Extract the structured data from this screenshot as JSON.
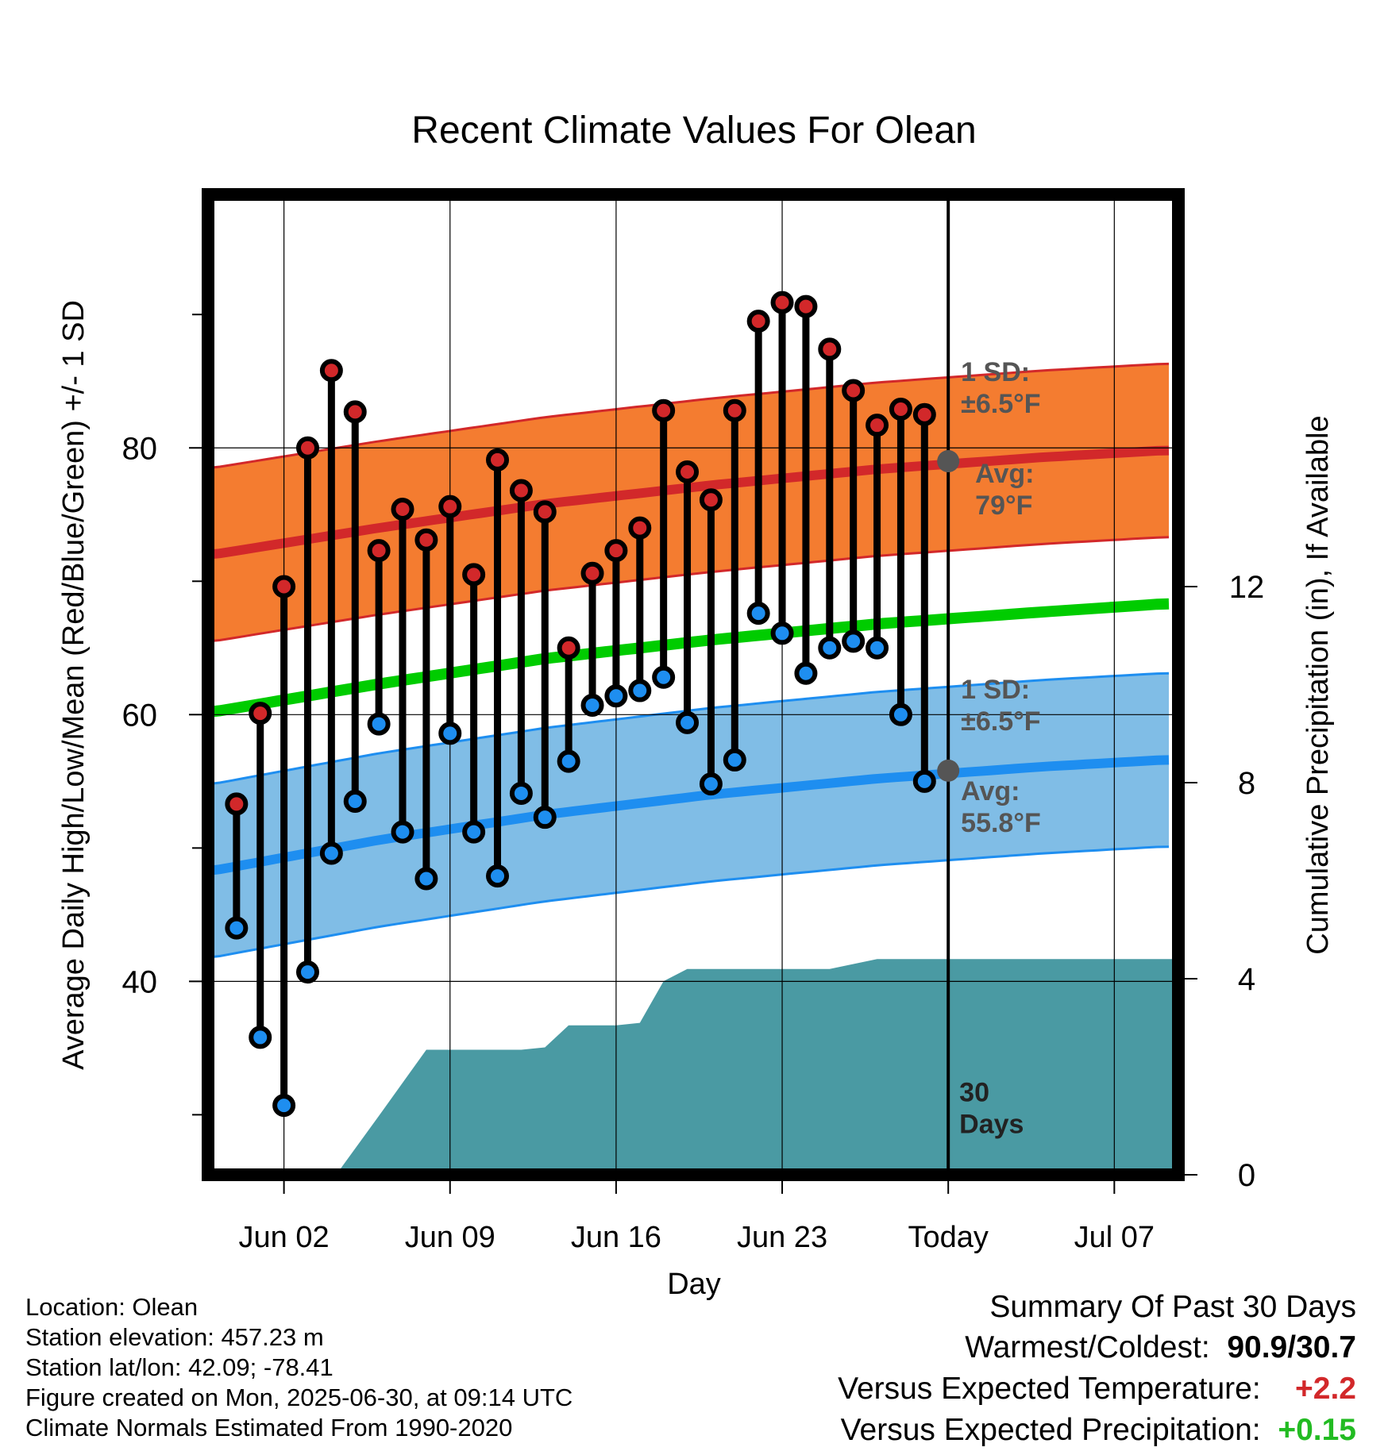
{
  "chart_data": {
    "type": "line",
    "title": "Recent Climate Values For Olean",
    "xlabel": "Day",
    "ylabel_left": "Average Daily High/Low/Mean (Red/Blue/Green) +/- 1 SD",
    "ylabel_right": "Cumulative Precipitation (in), If Available",
    "x_ticks": [
      {
        "day": 2,
        "label": "Jun 02"
      },
      {
        "day": 9,
        "label": "Jun 09"
      },
      {
        "day": 16,
        "label": "Jun 16"
      },
      {
        "day": 23,
        "label": "Jun 23"
      },
      {
        "day": 30,
        "label": "Today"
      },
      {
        "day": 37,
        "label": "Jul 07"
      }
    ],
    "xlim": [
      -1.2,
      39.7
    ],
    "ylim_left": [
      25.5,
      99
    ],
    "yticks_left": [
      40,
      60,
      80
    ],
    "yminor_left": [
      30,
      50,
      70,
      90
    ],
    "ylim_right": [
      0,
      20
    ],
    "yticks_right": [
      0,
      4,
      8,
      12
    ],
    "grid": true,
    "today_day": 30,
    "today_label": [
      "30",
      "Days"
    ],
    "highs": {
      "days": [
        0,
        1,
        2,
        3,
        4,
        5,
        6,
        7,
        8,
        9,
        10,
        11,
        12,
        13,
        14,
        15,
        16,
        17,
        18,
        19,
        20,
        21,
        22,
        23,
        24,
        25,
        26,
        27,
        28,
        29
      ],
      "values": [
        53.3,
        60.1,
        69.6,
        80.0,
        85.8,
        82.7,
        72.3,
        75.4,
        73.1,
        75.6,
        70.5,
        79.1,
        76.8,
        75.2,
        65.0,
        70.6,
        72.3,
        74.0,
        82.8,
        78.2,
        76.1,
        82.8,
        89.5,
        90.9,
        90.6,
        87.4,
        84.3,
        81.7,
        82.9,
        82.5
      ]
    },
    "lows": {
      "days": [
        0,
        1,
        2,
        3,
        4,
        5,
        6,
        7,
        8,
        9,
        10,
        11,
        12,
        13,
        14,
        15,
        16,
        17,
        18,
        19,
        20,
        21,
        22,
        23,
        24,
        25,
        26,
        27,
        28,
        29
      ],
      "values": [
        44.0,
        35.8,
        30.7,
        40.7,
        49.6,
        53.5,
        59.3,
        51.2,
        47.7,
        58.6,
        51.2,
        47.9,
        54.1,
        52.3,
        56.5,
        60.7,
        61.4,
        61.8,
        62.8,
        59.4,
        54.8,
        56.6,
        67.6,
        66.1,
        63.1,
        65.0,
        65.5,
        65.0,
        60.0,
        55.0
      ]
    },
    "normal_high": {
      "days": [
        -1,
        6,
        13,
        20,
        27,
        34,
        39
      ],
      "values": [
        72.0,
        74.0,
        75.8,
        77.2,
        78.4,
        79.3,
        79.8
      ],
      "sd": 6.5
    },
    "normal_low": {
      "days": [
        -1,
        6,
        13,
        20,
        27,
        34,
        39
      ],
      "values": [
        48.3,
        50.6,
        52.5,
        54.0,
        55.2,
        56.1,
        56.6
      ],
      "sd": 6.5
    },
    "normal_mean": {
      "days": [
        -1,
        6,
        13,
        20,
        27,
        34,
        39
      ],
      "values": [
        60.2,
        62.3,
        64.2,
        65.6,
        66.8,
        67.7,
        68.3
      ]
    },
    "precip": {
      "days": [
        4.2,
        6,
        8,
        10,
        12,
        13,
        14,
        16,
        17,
        18,
        19,
        20,
        21,
        22,
        23,
        24,
        25,
        26,
        27,
        28,
        29,
        30,
        39.7
      ],
      "values": [
        0,
        1.2,
        2.55,
        2.55,
        2.55,
        2.6,
        3.05,
        3.05,
        3.1,
        3.95,
        4.2,
        4.2,
        4.2,
        4.2,
        4.2,
        4.2,
        4.2,
        4.3,
        4.4,
        4.4,
        4.4,
        4.4,
        4.4
      ]
    },
    "annotations": {
      "high_sd": [
        "1 SD:",
        "±6.5°F"
      ],
      "high_avg": [
        "Avg:",
        "79°F"
      ],
      "low_sd": [
        "1 SD:",
        "±6.5°F"
      ],
      "low_avg": [
        "Avg:",
        "55.8°F"
      ],
      "high_avg_value": 79,
      "low_avg_value": 55.8
    },
    "colors": {
      "high_band": "#f47c30",
      "high_line": "#d2282a",
      "low_band": "#80bde6",
      "low_line": "#1e8ef0",
      "mean_line": "#00cc00",
      "precip": "#4a9aa3",
      "high_marker": "#d2282a",
      "low_marker": "#1e8ef0",
      "annot": "#555555"
    }
  },
  "info": {
    "location": "Location: Olean",
    "elevation": "Station elevation: 457.23 m",
    "latlon": "Station lat/lon: 42.09; -78.41",
    "created": "Figure created on Mon, 2025-06-30, at 09:14 UTC",
    "normals": "Climate Normals Estimated From 1990-2020"
  },
  "summary": {
    "title": "Summary Of Past 30 Days",
    "warm_cold_label": "Warmest/Coldest:",
    "warm_cold_value": "90.9/30.7",
    "temp_label": "Versus Expected Temperature:",
    "temp_value": "+2.2",
    "precip_label": "Versus Expected Precipitation:",
    "precip_value": "+0.15",
    "temp_color": "#d2282a",
    "precip_color": "#22bb22"
  }
}
